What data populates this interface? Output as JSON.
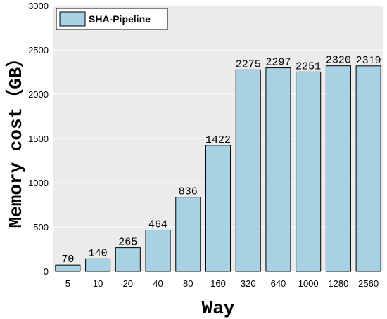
{
  "chart_data": {
    "type": "bar",
    "categories": [
      "5",
      "10",
      "20",
      "40",
      "80",
      "160",
      "320",
      "640",
      "1000",
      "1280",
      "2560"
    ],
    "series": [
      {
        "name": "SHA-Pipeline",
        "values": [
          70,
          140,
          265,
          464,
          836,
          1422,
          2275,
          2297,
          2251,
          2320,
          2319
        ]
      }
    ],
    "xlabel": "Way",
    "ylabel": "Memory cost（GB）",
    "ylim": [
      0,
      3000
    ],
    "yticks": [
      "0",
      "500",
      "1000",
      "1500",
      "2000",
      "2500",
      "3000"
    ],
    "data_labels": [
      "70",
      "140",
      "265",
      "464",
      "836",
      "1422",
      "2275",
      "2297",
      "2251",
      "2320",
      "2319"
    ],
    "grid": "horizontal",
    "legend_position": "top-left",
    "colors": {
      "bar_fill": "#a9d1e4",
      "bar_stroke": "#000000",
      "plot_bg": "#ebebeb",
      "grid": "#ffffff"
    }
  }
}
